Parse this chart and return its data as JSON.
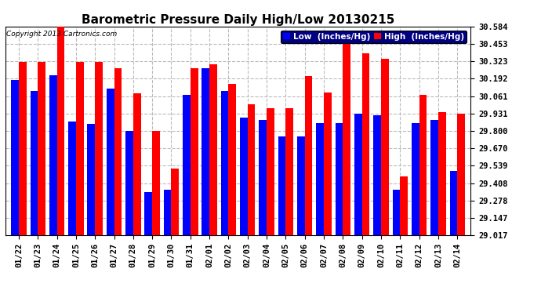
{
  "title": "Barometric Pressure Daily High/Low 20130215",
  "copyright": "Copyright 2013 Cartronics.com",
  "legend_low": "Low  (Inches/Hg)",
  "legend_high": "High  (Inches/Hg)",
  "dates": [
    "01/22",
    "01/23",
    "01/24",
    "01/25",
    "01/26",
    "01/27",
    "01/28",
    "01/29",
    "01/30",
    "01/31",
    "02/01",
    "02/02",
    "02/03",
    "02/04",
    "02/05",
    "02/06",
    "02/07",
    "02/08",
    "02/09",
    "02/10",
    "02/11",
    "02/12",
    "02/13",
    "02/14"
  ],
  "low": [
    30.18,
    30.1,
    30.22,
    29.87,
    29.85,
    30.12,
    29.8,
    29.34,
    29.36,
    30.07,
    30.27,
    30.1,
    29.9,
    29.88,
    29.76,
    29.76,
    29.86,
    29.86,
    29.93,
    29.92,
    29.36,
    29.86,
    29.88,
    29.5
  ],
  "high": [
    30.32,
    30.32,
    30.58,
    30.32,
    30.32,
    30.27,
    30.08,
    29.8,
    29.52,
    30.27,
    30.3,
    30.15,
    30.0,
    29.97,
    29.97,
    30.21,
    30.09,
    30.47,
    30.38,
    30.34,
    29.46,
    30.07,
    29.94,
    29.93
  ],
  "low_color": "#0000ff",
  "high_color": "#ff0000",
  "bg_color": "#ffffff",
  "plot_bg_color": "#ffffff",
  "ylim_min": 29.017,
  "ylim_max": 30.584,
  "yticks": [
    29.017,
    29.147,
    29.278,
    29.408,
    29.539,
    29.67,
    29.8,
    29.931,
    30.061,
    30.192,
    30.323,
    30.453,
    30.584
  ],
  "grid_color": "#bbbbbb",
  "bar_width": 0.4,
  "title_fontsize": 11,
  "tick_fontsize": 7.5,
  "legend_fontsize": 7.5
}
